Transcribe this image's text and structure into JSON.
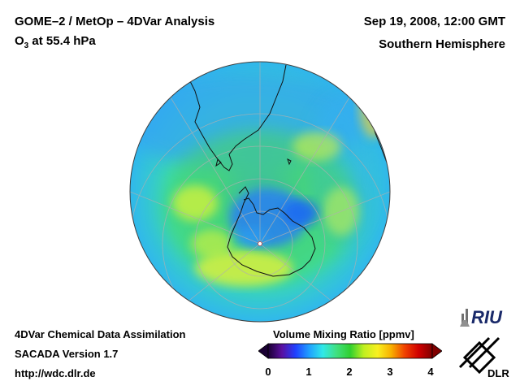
{
  "header": {
    "title_main": "GOME–2 / MetOp – 4DVar Analysis",
    "subtitle_species": "O",
    "subtitle_sub": "3",
    "subtitle_rest": " at 55.4 hPa",
    "date": "Sep 19, 2008, 12:00 GMT",
    "region": "Southern Hemisphere"
  },
  "footer": {
    "line1": "4DVar Chemical Data Assimilation",
    "line2": "SACADA Version 1.7",
    "line3": "http://wdc.dlr.de"
  },
  "colorbar": {
    "title": "Volume Mixing Ratio [ppmv]",
    "ticks": [
      "0",
      "1",
      "2",
      "3",
      "4"
    ],
    "colors": [
      "#1a0033",
      "#5a10a0",
      "#2040ff",
      "#20a0ff",
      "#30e8e8",
      "#40e080",
      "#30d030",
      "#c0f020",
      "#f8f020",
      "#f8b000",
      "#f04000",
      "#d00000",
      "#800000"
    ]
  },
  "logos": {
    "riu": "RIU",
    "dlr": "DLR"
  },
  "map": {
    "projection": "orthographic",
    "hemisphere": "south",
    "colors": {
      "background_field": "#3ad6a8",
      "ring_yellow": "#e8f040",
      "blue_low": "#2e8cf0",
      "coast": "#101010",
      "grid": "#b0b0b0"
    }
  }
}
